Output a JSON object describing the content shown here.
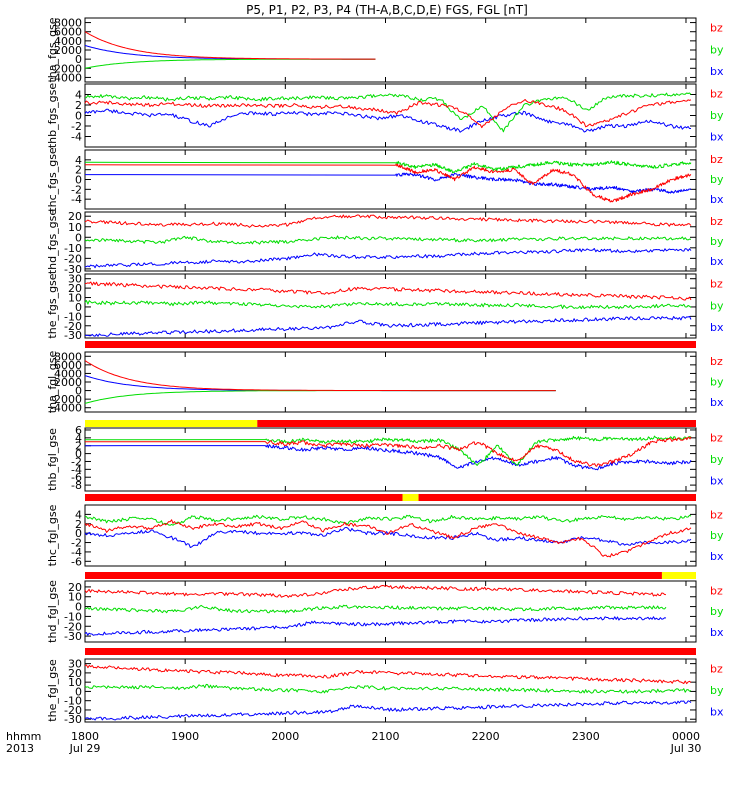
{
  "figure": {
    "title": "P5, P1, P2, P3, P4 (TH-A,B,C,D,E) FGS, FGL [nT]",
    "time_axis": {
      "row_label_1": "hhmm",
      "row_label_2": "2013",
      "ticks": [
        {
          "t": 0,
          "label": "1800",
          "sublabel": "Jul 29"
        },
        {
          "t": 1,
          "label": "1900",
          "sublabel": ""
        },
        {
          "t": 2,
          "label": "2000",
          "sublabel": ""
        },
        {
          "t": 3,
          "label": "2100",
          "sublabel": ""
        },
        {
          "t": 4,
          "label": "2200",
          "sublabel": ""
        },
        {
          "t": 5,
          "label": "2300",
          "sublabel": ""
        },
        {
          "t": 6,
          "label": "0000",
          "sublabel": "Jul 30"
        }
      ],
      "range_hours_from_1800": [
        0,
        6.1
      ]
    },
    "colors": {
      "bz": "#ff0000",
      "by": "#00dd00",
      "bx": "#0000ff"
    }
  },
  "chart_data": [
    {
      "type": "line",
      "ylabel": "tha_fgs_gse",
      "ylim": [
        -5000,
        9000
      ],
      "yticks": [
        -4000,
        -2000,
        0,
        2000,
        4000,
        6000,
        8000
      ],
      "legend": [
        "bz",
        "by",
        "bx"
      ],
      "data_range_hours": [
        0,
        2.9
      ],
      "series": [
        {
          "name": "bz",
          "profile": "decay",
          "start": 6000,
          "end": 0
        },
        {
          "name": "by",
          "profile": "recover",
          "start": -2000,
          "end": 0
        },
        {
          "name": "bx",
          "profile": "decay",
          "start": 3000,
          "end": 0
        }
      ]
    },
    {
      "type": "line",
      "ylabel": "thb_fgs_gse",
      "ylim": [
        -6,
        6
      ],
      "yticks": [
        -4,
        -2,
        0,
        2,
        4
      ],
      "legend": [
        "bz",
        "by",
        "bx"
      ],
      "data_range_hours": [
        0,
        6.05
      ],
      "series": [
        {
          "name": "bz",
          "values": [
            2.5,
            2.5,
            2.2,
            2.0,
            2.3,
            2.0,
            1.8,
            1.9,
            2.0,
            1.8,
            2.0,
            1.5,
            1.8,
            1.5,
            1.0,
            0.5,
            2.5,
            2.0,
            1.0,
            -2.0,
            1.0,
            3.0,
            2.0,
            1.0,
            -2.0,
            -1.0,
            0.5,
            2.0,
            2.5,
            3.0
          ]
        },
        {
          "name": "by",
          "values": [
            3.5,
            3.8,
            3.2,
            3.5,
            3.0,
            3.4,
            3.2,
            3.5,
            3.0,
            3.2,
            3.3,
            3.5,
            3.3,
            3.5,
            3.8,
            3.8,
            3.0,
            3.2,
            -1.0,
            2.0,
            -3.0,
            2.0,
            3.0,
            3.5,
            1.0,
            3.5,
            3.8,
            3.8,
            4.0,
            4.0
          ]
        },
        {
          "name": "bx",
          "values": [
            0.5,
            1.0,
            0.5,
            0.0,
            0.3,
            -1.0,
            -2.0,
            0.0,
            0.5,
            0.3,
            0.5,
            0.2,
            0.5,
            0.0,
            -0.5,
            0.0,
            -1.0,
            -2.0,
            -3.0,
            -1.0,
            0.0,
            0.5,
            -1.0,
            -1.5,
            -3.0,
            -2.0,
            -2.0,
            -1.0,
            -2.0,
            -2.5
          ]
        }
      ]
    },
    {
      "type": "line",
      "ylabel": "thc_fgs_gse",
      "ylim": [
        -6,
        6
      ],
      "yticks": [
        -4,
        -2,
        0,
        2,
        4
      ],
      "legend": [
        "bz",
        "by",
        "bx"
      ],
      "data_range_hours": [
        3.1,
        6.05
      ],
      "constant_before": true,
      "series": [
        {
          "name": "bz",
          "values": [
            3.0,
            1.5,
            2.0,
            0.0,
            2.5,
            1.5,
            2.0,
            -1.0,
            2.0,
            1.0,
            -3.0,
            -4.5,
            -3.0,
            -2.0,
            0.0,
            1.0
          ]
        },
        {
          "name": "by",
          "values": [
            3.5,
            2.5,
            3.0,
            1.5,
            3.2,
            2.0,
            2.5,
            3.0,
            3.5,
            3.0,
            3.0,
            3.5,
            3.0,
            2.5,
            3.0,
            3.5
          ]
        },
        {
          "name": "bx",
          "values": [
            1.0,
            1.0,
            0.0,
            1.0,
            0.5,
            0.0,
            0.0,
            -1.0,
            -1.0,
            -1.5,
            -2.0,
            -1.5,
            -2.5,
            -2.0,
            -2.5,
            -2.0
          ]
        }
      ]
    },
    {
      "type": "line",
      "ylabel": "thd_fgs_gse",
      "ylim": [
        -32,
        24
      ],
      "yticks": [
        -30,
        -20,
        -10,
        0,
        10,
        20
      ],
      "legend": [
        "bz",
        "by",
        "bx"
      ],
      "data_range_hours": [
        0,
        6.05
      ],
      "series": [
        {
          "name": "bz",
          "values": [
            15,
            14,
            13,
            12,
            12,
            13,
            12,
            10,
            12,
            18,
            20,
            20,
            19,
            19,
            18,
            17,
            17,
            16,
            16,
            15,
            15,
            14,
            13,
            12,
            12
          ]
        },
        {
          "name": "by",
          "values": [
            -2,
            -3,
            -4,
            -5,
            0,
            -4,
            -5,
            -5,
            -4,
            -2,
            0,
            -1,
            -1,
            -2,
            -2,
            -3,
            -3,
            -2,
            -2,
            -1,
            -1,
            -1,
            -1,
            -1,
            -1
          ]
        },
        {
          "name": "bx",
          "values": [
            -28,
            -27,
            -26,
            -25,
            -24,
            -23,
            -23,
            -22,
            -20,
            -16,
            -18,
            -19,
            -19,
            -18,
            -18,
            -16,
            -15,
            -14,
            -14,
            -13,
            -12,
            -13,
            -13,
            -12,
            -12
          ]
        }
      ]
    },
    {
      "type": "line",
      "ylabel": "the_fgs_gse",
      "ylim": [
        -33,
        35
      ],
      "yticks": [
        -30,
        -20,
        -10,
        0,
        10,
        20,
        30
      ],
      "legend": [
        "bz",
        "by",
        "bx"
      ],
      "data_range_hours": [
        0,
        6.05
      ],
      "series": [
        {
          "name": "bz",
          "values": [
            25,
            24,
            22,
            21,
            20,
            19,
            18,
            16,
            15,
            20,
            19,
            18,
            17,
            16,
            15,
            14,
            13,
            12,
            11,
            10,
            9
          ]
        },
        {
          "name": "by",
          "values": [
            5,
            4,
            5,
            3,
            5,
            3,
            2,
            1,
            0,
            4,
            3,
            3,
            3,
            2,
            2,
            1,
            0,
            0,
            0,
            1,
            1
          ]
        },
        {
          "name": "bx",
          "values": [
            -30,
            -29,
            -28,
            -27,
            -26,
            -25,
            -24,
            -23,
            -22,
            -15,
            -20,
            -19,
            -18,
            -17,
            -16,
            -15,
            -14,
            -13,
            -12,
            -12,
            -12
          ]
        }
      ]
    },
    {
      "type": "line",
      "ylabel": "tha_fgl_gse",
      "ylim": [
        -5000,
        9000
      ],
      "yticks": [
        -4000,
        -2000,
        0,
        2000,
        4000,
        6000,
        8000
      ],
      "legend": [
        "bz",
        "by",
        "bx"
      ],
      "data_range_hours": [
        0,
        4.7
      ],
      "series": [
        {
          "name": "bz",
          "profile": "decay",
          "start": 7000,
          "end": 0
        },
        {
          "name": "by",
          "profile": "recover",
          "start": -3000,
          "end": 0
        },
        {
          "name": "bx",
          "profile": "decay",
          "start": 3500,
          "end": 0
        }
      ]
    },
    {
      "type": "line",
      "ylabel": "thb_fgl_gse",
      "ylim": [
        -9.5,
        6.5
      ],
      "yticks": [
        -8,
        -6,
        -4,
        -2,
        0,
        2,
        4,
        6
      ],
      "legend": [
        "bz",
        "by",
        "bx"
      ],
      "data_range_hours": [
        1.8,
        6.05
      ],
      "constant_before": true,
      "series": [
        {
          "name": "bz",
          "values": [
            3.0,
            2.5,
            2.8,
            2.0,
            2.5,
            2.0,
            2.2,
            2.0,
            1.5,
            2.0,
            1.0,
            3.0,
            0.0,
            -2.0,
            2.0,
            1.0,
            -2.0,
            -3.0,
            -2.0,
            0.0,
            3.0,
            3.5,
            4.0
          ]
        },
        {
          "name": "by",
          "values": [
            3.5,
            3.0,
            3.5,
            3.0,
            3.2,
            3.0,
            3.5,
            3.5,
            3.0,
            3.5,
            1.0,
            -3.0,
            2.0,
            -3.0,
            3.0,
            3.5,
            4.0,
            3.5,
            4.0,
            3.5,
            4.0,
            4.0,
            4.0
          ]
        },
        {
          "name": "bx",
          "values": [
            2.0,
            1.5,
            1.0,
            1.5,
            1.0,
            1.5,
            1.0,
            0.5,
            0.0,
            -1.0,
            -3.5,
            -2.0,
            -1.0,
            -3.0,
            -2.0,
            -1.0,
            -3.0,
            -4.0,
            -2.5,
            -2.0,
            -2.0,
            -2.5,
            -2.0
          ]
        }
      ]
    },
    {
      "type": "line",
      "ylabel": "thc_fgl_gse",
      "ylim": [
        -7,
        6
      ],
      "yticks": [
        -6,
        -4,
        -2,
        0,
        2,
        4
      ],
      "legend": [
        "bz",
        "by",
        "bx"
      ],
      "data_range_hours": [
        0,
        6.05
      ],
      "series": [
        {
          "name": "bz",
          "values": [
            2.0,
            0.5,
            1.5,
            1.0,
            2.5,
            1.0,
            2.0,
            1.5,
            2.0,
            1.0,
            2.5,
            0.5,
            2.0,
            1.5,
            0.0,
            2.0,
            0.5,
            -1.0,
            1.0,
            2.0,
            0.0,
            -1.0,
            -2.0,
            -1.0,
            -5.0,
            -4.0,
            -2.0,
            0.0,
            1.0
          ]
        },
        {
          "name": "by",
          "values": [
            3.5,
            2.5,
            3.0,
            3.2,
            1.5,
            3.5,
            2.8,
            3.0,
            3.5,
            3.0,
            3.5,
            3.0,
            2.0,
            3.2,
            3.0,
            3.5,
            2.5,
            3.5,
            3.0,
            3.2,
            3.0,
            3.5,
            2.5,
            3.0,
            3.5,
            3.0,
            3.5,
            3.0,
            3.5
          ]
        },
        {
          "name": "bx",
          "values": [
            0.0,
            -0.5,
            0.0,
            0.5,
            -1.0,
            -3.0,
            0.0,
            0.5,
            0.0,
            0.0,
            0.0,
            -0.5,
            1.0,
            0.0,
            0.0,
            -0.5,
            -1.0,
            -1.0,
            0.0,
            -1.5,
            -1.0,
            -1.5,
            -2.0,
            -1.0,
            -1.5,
            -2.5,
            -2.0,
            -2.0,
            -1.5
          ]
        }
      ]
    },
    {
      "type": "line",
      "ylabel": "thd_fgl_gse",
      "ylim": [
        -36,
        26
      ],
      "yticks": [
        -30,
        -20,
        -10,
        0,
        10,
        20
      ],
      "legend": [
        "bz",
        "by",
        "bx"
      ],
      "data_range_hours": [
        0,
        5.8
      ],
      "series": [
        {
          "name": "bz",
          "values": [
            16,
            15,
            14,
            13,
            12,
            13,
            12,
            11,
            13,
            18,
            20,
            20,
            19,
            18,
            18,
            17,
            16,
            15,
            14,
            13,
            12
          ]
        },
        {
          "name": "by",
          "values": [
            -2,
            -3,
            -4,
            -5,
            0,
            -4,
            -5,
            -5,
            -2,
            0,
            -1,
            -1,
            -2,
            -2,
            -2,
            -3,
            -2,
            -2,
            -1,
            -1,
            -1
          ]
        },
        {
          "name": "bx",
          "values": [
            -28,
            -27,
            -26,
            -25,
            -24,
            -23,
            -22,
            -21,
            -15,
            -18,
            -18,
            -17,
            -16,
            -15,
            -15,
            -14,
            -13,
            -12,
            -12,
            -12,
            -12
          ]
        }
      ]
    },
    {
      "type": "line",
      "ylabel": "the_fgl_gse",
      "ylim": [
        -33,
        35
      ],
      "yticks": [
        -30,
        -20,
        -10,
        0,
        10,
        20,
        30
      ],
      "legend": [
        "bz",
        "by",
        "bx"
      ],
      "data_range_hours": [
        0,
        6.05
      ],
      "series": [
        {
          "name": "bz",
          "values": [
            27,
            26,
            24,
            22,
            21,
            20,
            18,
            17,
            16,
            21,
            20,
            19,
            18,
            17,
            16,
            15,
            14,
            13,
            12,
            11,
            10
          ]
        },
        {
          "name": "by",
          "values": [
            5,
            4,
            5,
            3,
            6,
            3,
            2,
            1,
            0,
            5,
            3,
            3,
            3,
            2,
            2,
            1,
            0,
            0,
            0,
            1,
            1
          ]
        },
        {
          "name": "bx",
          "values": [
            -30,
            -29,
            -28,
            -27,
            -26,
            -25,
            -24,
            -23,
            -22,
            -15,
            -20,
            -19,
            -18,
            -17,
            -16,
            -15,
            -14,
            -13,
            -12,
            -12,
            -12
          ]
        }
      ]
    }
  ]
}
